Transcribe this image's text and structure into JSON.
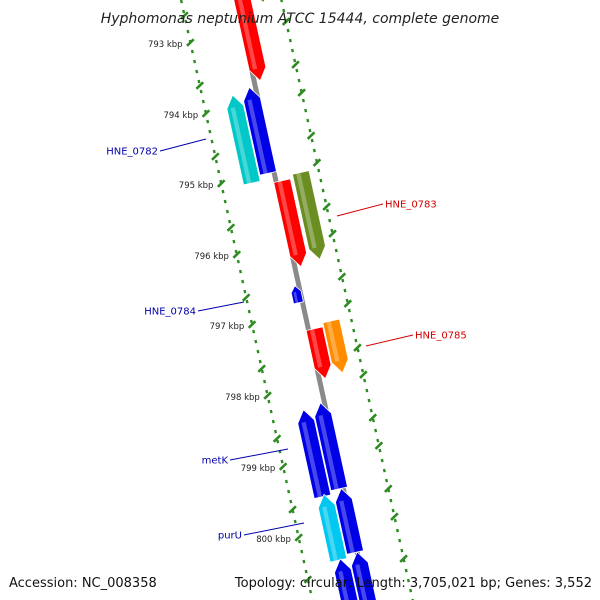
{
  "title": "Hyphomonas neptunium ATCC 15444, complete genome",
  "footer": {
    "accession": "Accession: NC_008358",
    "topology": "Topology: circular; Length: 3,705,021 bp; Genes: 3,552"
  },
  "colors": {
    "backbone": "#8a8a8a",
    "tick": "#2e8b22",
    "label_forward": "#d40000",
    "label_reverse": "#0000aa"
  },
  "ticks": {
    "major": [
      "793 kbp",
      "794 kbp",
      "795 kbp",
      "796 kbp",
      "797 kbp",
      "798 kbp",
      "799 kbp",
      "800 kbp"
    ]
  },
  "genes": {
    "reverse": [
      {
        "id": "r1",
        "color": "#00c8c8",
        "strand": "reverse"
      },
      {
        "id": "r2",
        "color": "#0000e6",
        "strand": "reverse"
      },
      {
        "id": "r3",
        "color": "#0000e6",
        "strand": "reverse"
      },
      {
        "id": "r4",
        "color": "#0000e6",
        "strand": "reverse"
      },
      {
        "id": "r5",
        "color": "#0000e6",
        "strand": "reverse"
      },
      {
        "id": "r6",
        "color": "#00c8f0",
        "strand": "reverse"
      },
      {
        "id": "r7",
        "color": "#0000e6",
        "strand": "reverse"
      },
      {
        "id": "r8",
        "color": "#0000e6",
        "strand": "reverse"
      },
      {
        "id": "r9",
        "color": "#0000e6",
        "strand": "reverse"
      }
    ],
    "forward": [
      {
        "id": "f1",
        "color": "#ff0000",
        "strand": "forward"
      },
      {
        "id": "f2",
        "color": "#6b8e23",
        "strand": "forward"
      },
      {
        "id": "f3",
        "color": "#ff0000",
        "strand": "forward"
      },
      {
        "id": "f4",
        "color": "#6b8e23",
        "strand": "forward"
      },
      {
        "id": "f5",
        "color": "#ff0000",
        "strand": "forward"
      },
      {
        "id": "f6",
        "color": "#ff8c00",
        "strand": "forward"
      }
    ]
  },
  "labels": [
    {
      "text": "HNE_0782",
      "strand": "reverse"
    },
    {
      "text": "HNE_0783",
      "strand": "forward"
    },
    {
      "text": "HNE_0784",
      "strand": "reverse"
    },
    {
      "text": "HNE_0785",
      "strand": "forward"
    },
    {
      "text": "metK",
      "strand": "reverse"
    },
    {
      "text": "purU",
      "strand": "reverse"
    }
  ]
}
